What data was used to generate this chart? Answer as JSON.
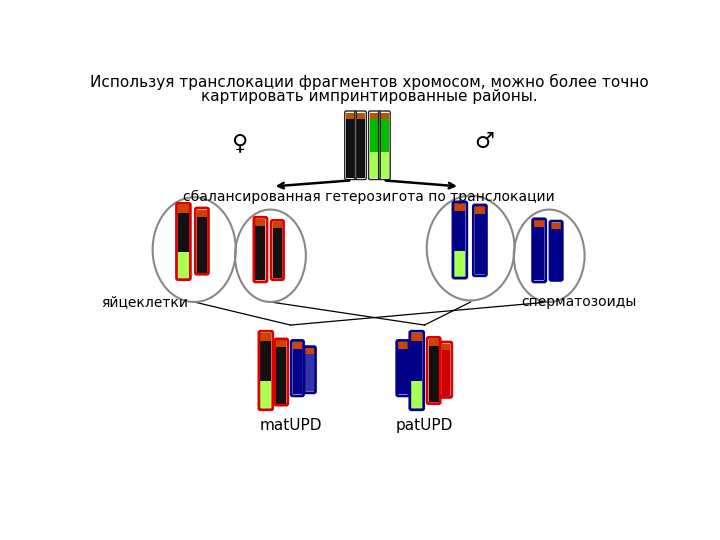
{
  "title_line1": "Используя транслокации фрагментов хромосом, можно более точно",
  "title_line2": "картировать импринтированные районы.",
  "label_female": "♀",
  "label_male": "♂",
  "label_balanced": "сбалансированная гетерозигота по транслокации",
  "label_eggs": "яйцеклетки",
  "label_sperm": "сперматозоиды",
  "label_matUPD": "matUPD",
  "label_patUPD": "patUPD",
  "bg_color": "#ffffff"
}
